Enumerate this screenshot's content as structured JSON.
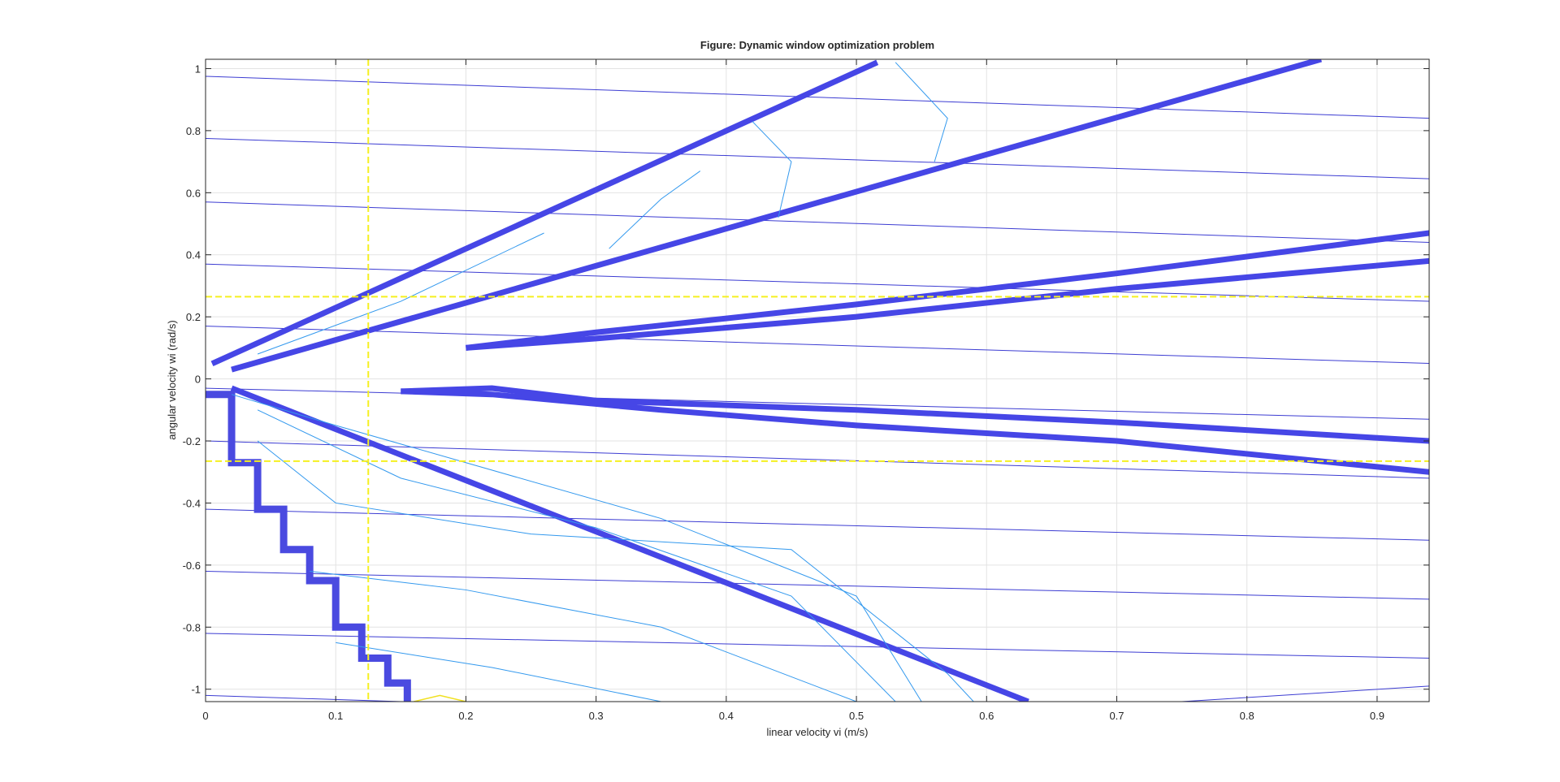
{
  "chart_data": {
    "type": "contour",
    "title": "Figure: Dynamic window optimization problem",
    "xlabel": "linear velocity vi (m/s)",
    "ylabel": "angular velocity wi (rad/s)",
    "xlim": [
      0,
      0.94
    ],
    "ylim": [
      -1.04,
      1.03
    ],
    "xticks": [
      0,
      0.1,
      0.2,
      0.3,
      0.4,
      0.5,
      0.6,
      0.7,
      0.8,
      0.9
    ],
    "yticks": [
      -1,
      -0.8,
      -0.6,
      -0.4,
      -0.2,
      0,
      0.2,
      0.4,
      0.6,
      0.8,
      1
    ],
    "grid": true,
    "lines": [
      {
        "color": "#3c3cd2",
        "width": 1,
        "x": [
          0,
          0.94
        ],
        "y": [
          0.975,
          0.84
        ]
      },
      {
        "color": "#3c3cd2",
        "width": 1,
        "x": [
          0,
          0.94
        ],
        "y": [
          0.775,
          0.645
        ]
      },
      {
        "color": "#3c3cd2",
        "width": 1,
        "x": [
          0,
          0.94
        ],
        "y": [
          0.57,
          0.44
        ]
      },
      {
        "color": "#3c3cd2",
        "width": 1,
        "x": [
          0,
          0.94
        ],
        "y": [
          0.37,
          0.25
        ]
      },
      {
        "color": "#3c3cd2",
        "width": 1,
        "x": [
          0,
          0.94
        ],
        "y": [
          0.17,
          0.05
        ]
      },
      {
        "color": "#3c3cd2",
        "width": 1,
        "x": [
          0,
          0.94
        ],
        "y": [
          -0.03,
          -0.13
        ]
      },
      {
        "color": "#3c3cd2",
        "width": 1,
        "x": [
          0,
          0.94
        ],
        "y": [
          -0.2,
          -0.32
        ]
      },
      {
        "color": "#3c3cd2",
        "width": 1,
        "x": [
          0,
          0.94
        ],
        "y": [
          -0.42,
          -0.52
        ]
      },
      {
        "color": "#3c3cd2",
        "width": 1,
        "x": [
          0,
          0.94
        ],
        "y": [
          -0.62,
          -0.71
        ]
      },
      {
        "color": "#3c3cd2",
        "width": 1,
        "x": [
          0,
          0.94
        ],
        "y": [
          -0.82,
          -0.9
        ]
      },
      {
        "color": "#3c3cd2",
        "width": 1,
        "x": [
          0,
          0.15
        ],
        "y": [
          -1.02,
          -1.04
        ]
      },
      {
        "color": "#3c3cd2",
        "width": 1,
        "x": [
          0.75,
          0.94
        ],
        "y": [
          -1.04,
          -0.99
        ]
      },
      {
        "color": "#4646e6",
        "width": 7,
        "x": [
          0.005,
          0.516
        ],
        "y": [
          0.049,
          1.02
        ]
      },
      {
        "color": "#4646e6",
        "width": 7,
        "x": [
          0.02,
          0.857
        ],
        "y": [
          0.03,
          1.03
        ]
      },
      {
        "color": "#4646e6",
        "width": 7,
        "x": [
          0.2,
          0.3,
          0.5,
          0.7,
          0.94
        ],
        "y": [
          0.1,
          0.15,
          0.24,
          0.34,
          0.47
        ]
      },
      {
        "color": "#4646e6",
        "width": 7,
        "x": [
          0.2,
          0.3,
          0.5,
          0.7,
          0.94
        ],
        "y": [
          0.1,
          0.13,
          0.2,
          0.29,
          0.38
        ]
      },
      {
        "color": "#4646e6",
        "width": 7,
        "x": [
          0.15,
          0.22,
          0.3,
          0.5,
          0.7,
          0.94
        ],
        "y": [
          -0.04,
          -0.03,
          -0.07,
          -0.1,
          -0.14,
          -0.2
        ]
      },
      {
        "color": "#4646e6",
        "width": 7,
        "x": [
          0.15,
          0.22,
          0.35,
          0.5,
          0.7,
          0.94
        ],
        "y": [
          -0.04,
          -0.05,
          -0.1,
          -0.15,
          -0.2,
          -0.3
        ]
      },
      {
        "color": "#4646e6",
        "width": 7,
        "x": [
          0.02,
          0.632
        ],
        "y": [
          -0.03,
          -1.04
        ]
      },
      {
        "color": "#4a4ae0",
        "width": 9,
        "x": [
          0,
          0.02,
          0.02,
          0.04,
          0.04,
          0.06,
          0.06,
          0.08,
          0.08,
          0.1,
          0.1,
          0.12,
          0.12,
          0.14,
          0.14,
          0.155,
          0.155
        ],
        "y": [
          -0.05,
          -0.05,
          -0.27,
          -0.27,
          -0.42,
          -0.42,
          -0.55,
          -0.55,
          -0.65,
          -0.65,
          -0.8,
          -0.8,
          -0.9,
          -0.9,
          -0.98,
          -0.98,
          -1.04
        ]
      },
      {
        "color": "#3399ee",
        "width": 1,
        "x": [
          0.02,
          0.1,
          0.2,
          0.35,
          0.5,
          0.55
        ],
        "y": [
          -0.05,
          -0.15,
          -0.27,
          -0.45,
          -0.7,
          -1.04
        ]
      },
      {
        "color": "#3399ee",
        "width": 1,
        "x": [
          0.04,
          0.15,
          0.3,
          0.45,
          0.53
        ],
        "y": [
          -0.1,
          -0.32,
          -0.48,
          -0.7,
          -1.04
        ]
      },
      {
        "color": "#3399ee",
        "width": 1,
        "x": [
          0.04,
          0.1,
          0.25,
          0.45,
          0.57,
          0.59
        ],
        "y": [
          -0.2,
          -0.4,
          -0.5,
          -0.55,
          -0.95,
          -1.04
        ]
      },
      {
        "color": "#3399ee",
        "width": 1,
        "x": [
          0.08,
          0.2,
          0.35,
          0.5
        ],
        "y": [
          -0.62,
          -0.68,
          -0.8,
          -1.04
        ]
      },
      {
        "color": "#3399ee",
        "width": 1,
        "x": [
          0.1,
          0.22,
          0.35
        ],
        "y": [
          -0.85,
          -0.93,
          -1.04
        ]
      },
      {
        "color": "#3399ee",
        "width": 1,
        "x": [
          0.04,
          0.15,
          0.26
        ],
        "y": [
          0.08,
          0.25,
          0.47
        ]
      },
      {
        "color": "#3399ee",
        "width": 1,
        "x": [
          0.31,
          0.35,
          0.38
        ],
        "y": [
          0.42,
          0.58,
          0.67
        ]
      },
      {
        "color": "#3399ee",
        "width": 1,
        "x": [
          0.44,
          0.45,
          0.42
        ],
        "y": [
          0.52,
          0.7,
          0.83
        ]
      },
      {
        "color": "#3399ee",
        "width": 1,
        "x": [
          0.56,
          0.57,
          0.53
        ],
        "y": [
          0.7,
          0.84,
          1.02
        ]
      },
      {
        "color": "#f0e020",
        "width": 1.5,
        "x": [
          0.16,
          0.18,
          0.2
        ],
        "y": [
          -1.04,
          -1.02,
          -1.04
        ]
      }
    ],
    "reference_lines": {
      "color": "#f5f020",
      "x": [
        0.125
      ],
      "y": [
        0.265,
        -0.265
      ]
    }
  }
}
